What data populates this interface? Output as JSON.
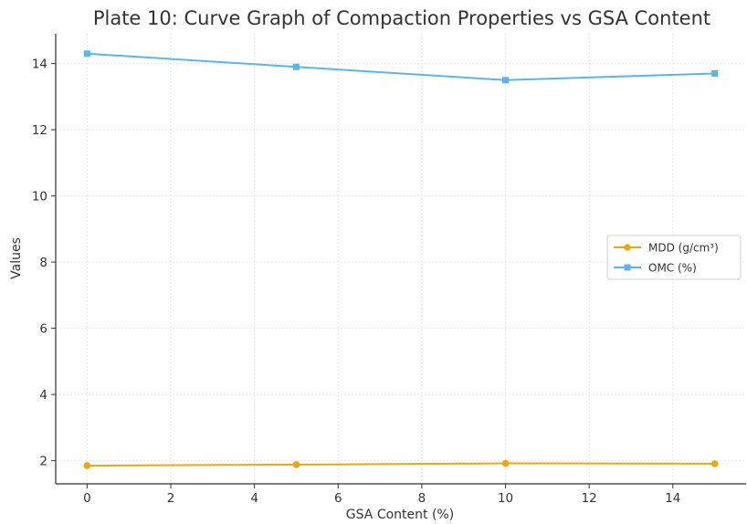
{
  "chart_data": {
    "type": "line",
    "title": "Plate 10: Curve Graph of Compaction Properties vs GSA Content",
    "xlabel": "GSA Content (%)",
    "ylabel": "Values",
    "x": [
      0,
      5,
      10,
      15
    ],
    "xlim": [
      -0.75,
      15.75
    ],
    "ylim": [
      1.3,
      14.9
    ],
    "xticks": [
      0,
      2,
      4,
      6,
      8,
      10,
      12,
      14
    ],
    "yticks": [
      2,
      4,
      6,
      8,
      10,
      12,
      14
    ],
    "grid": true,
    "legend_position": "right",
    "series": [
      {
        "name": "MDD (g/cm³)",
        "values": [
          1.85,
          1.88,
          1.92,
          1.91
        ],
        "color": "#E6A817",
        "marker": "circle"
      },
      {
        "name": "OMC (%)",
        "values": [
          14.3,
          13.9,
          13.5,
          13.7
        ],
        "color": "#5DB4E8",
        "marker": "square"
      }
    ]
  }
}
